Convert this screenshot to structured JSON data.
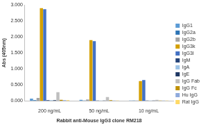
{
  "chart_data": {
    "type": "bar",
    "x_label": "Rabbit anti-Mouse IgG3 clone RM218",
    "y_label": "Abs (405nm)",
    "categories": [
      "200 ng/mL",
      "50 ng/mL",
      "10 ng/mL"
    ],
    "series": [
      {
        "name": "IgG1",
        "color": "#5b9bd5",
        "values": [
          0.07,
          0.03,
          0.01
        ]
      },
      {
        "name": "IgG2a",
        "color": "#2e75b6",
        "values": [
          0.02,
          0.01,
          0.01
        ]
      },
      {
        "name": "IgG2b",
        "color": "#a5a5a5",
        "values": [
          0.09,
          0.04,
          0.01
        ]
      },
      {
        "name": "IgG3k",
        "color": "#d4a000",
        "values": [
          2.9,
          1.9,
          0.62
        ]
      },
      {
        "name": "IgG3l",
        "color": "#4472c4",
        "values": [
          2.87,
          1.87,
          0.65
        ]
      },
      {
        "name": "IgM",
        "color": "#264478",
        "values": [
          0.02,
          0.01,
          0.01
        ]
      },
      {
        "name": "IgA",
        "color": "#9dc3e6",
        "values": [
          0.02,
          0.01,
          0.01
        ]
      },
      {
        "name": "IgE",
        "color": "#1f3864",
        "values": [
          0.02,
          0.01,
          0.01
        ]
      },
      {
        "name": "IgG Fab",
        "color": "#bfbfbf",
        "values": [
          0.27,
          0.12,
          0.03
        ]
      },
      {
        "name": "IgG Fc",
        "color": "#bf9000",
        "values": [
          0.03,
          0.02,
          0.01
        ]
      },
      {
        "name": "Hu IgG",
        "color": "#8faadc",
        "values": [
          0.02,
          0.01,
          0.01
        ]
      },
      {
        "name": "Rat IgG",
        "color": "#ffd966",
        "values": [
          0.02,
          0.01,
          0.01
        ]
      }
    ],
    "ylim": [
      0,
      3
    ],
    "yticks": [
      {
        "value": 0,
        "label": "0.000"
      },
      {
        "value": 0.5,
        "label": "0.500"
      },
      {
        "value": 1,
        "label": "1.000"
      },
      {
        "value": 1.5,
        "label": "1.500"
      },
      {
        "value": 2,
        "label": "2.000"
      },
      {
        "value": 2.5,
        "label": "2.500"
      },
      {
        "value": 3,
        "label": "3.000"
      }
    ],
    "grid": false,
    "legend": "right"
  }
}
